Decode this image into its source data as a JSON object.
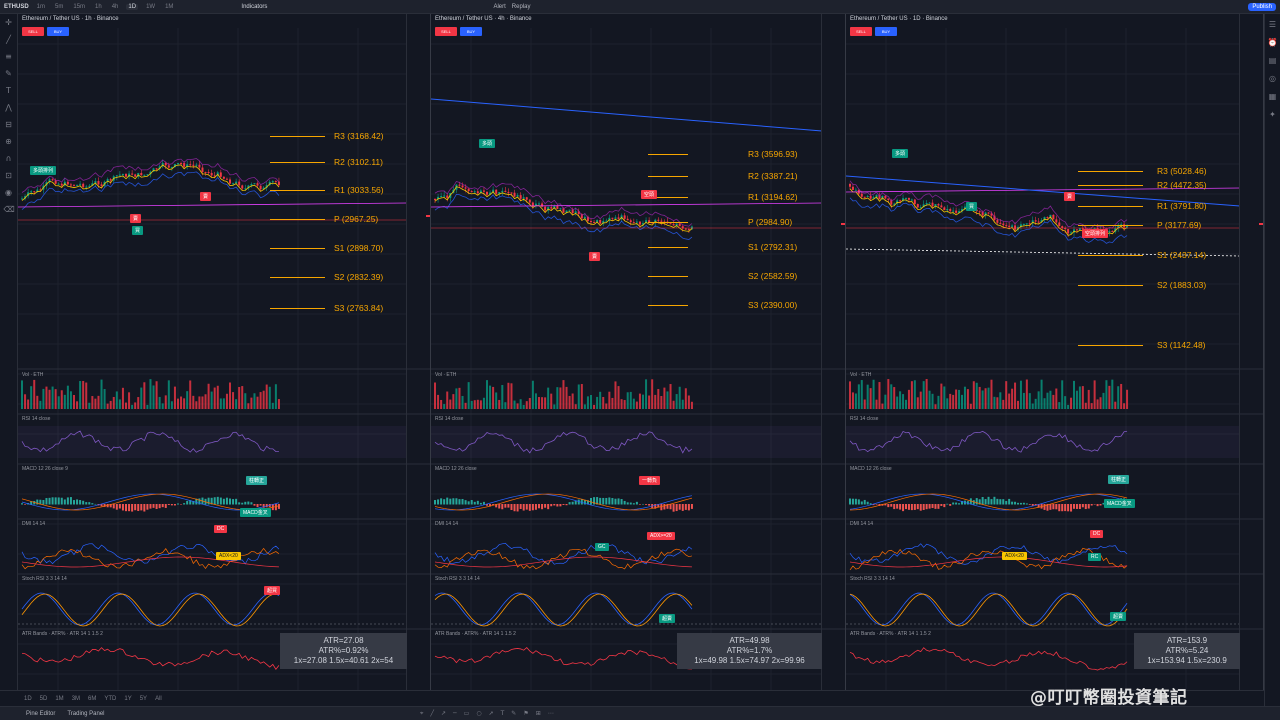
{
  "topbar": {
    "symbol": "ETHUSD",
    "timeframes": [
      "1m",
      "5m",
      "15m",
      "1h",
      "4h",
      "1D",
      "1W",
      "1M"
    ],
    "active_timeframe": "1D",
    "indicators_label": "Indicators",
    "alert_label": "Alert",
    "replay_label": "Replay",
    "publish_label": "Publish"
  },
  "panels": [
    {
      "title": "Ethereum / Tether US · 1h · Binance",
      "sell_label": "SELL",
      "buy_label": "BUY",
      "pivots": [
        {
          "label": "R3 (3168.42)",
          "level": "R3"
        },
        {
          "label": "R2 (3102.11)",
          "level": "R2"
        },
        {
          "label": "R1 (3033.56)",
          "level": "R1"
        },
        {
          "label": "P (2967.25)",
          "level": "P"
        },
        {
          "label": "S1 (2898.70)",
          "level": "S1"
        },
        {
          "label": "S2 (2832.39)",
          "level": "S2"
        },
        {
          "label": "S3 (2763.84)",
          "level": "S3"
        }
      ],
      "tags": [
        {
          "text": "多頭排列",
          "kind": "green"
        },
        {
          "text": "賣",
          "kind": "red"
        },
        {
          "text": "買",
          "kind": "green"
        },
        {
          "text": "賣",
          "kind": "red"
        }
      ],
      "macd_tags": [
        {
          "text": "柱轉正",
          "kind": "teal"
        },
        {
          "text": "MACD金叉",
          "kind": "green"
        }
      ],
      "dmi_tags": [
        {
          "text": "DC",
          "kind": "red"
        },
        {
          "text": "ADX<20",
          "kind": "yellow"
        }
      ],
      "stoch_tags": [
        {
          "text": "超買",
          "kind": "red"
        }
      ],
      "atr": {
        "line1": "ATR=27.08",
        "line2": "ATR%=0.92%",
        "line3": "1x=27.08   1.5x=40.61   2x=54"
      },
      "ind_labels": {
        "vol": "Vol · ETH",
        "rsi": "RSI 14 close",
        "macd": "MACD 12 26 close 9",
        "dmi": "DMI 14 14",
        "stoch": "Stoch RSI 3 3 14 14",
        "atr": "ATR Bands · ATR% · ATR 14 1 1.5 2"
      }
    },
    {
      "title": "Ethereum / Tether US · 4h · Binance",
      "sell_label": "SELL",
      "buy_label": "BUY",
      "pivots": [
        {
          "label": "R3 (3596.93)",
          "level": "R3"
        },
        {
          "label": "R2 (3387.21)",
          "level": "R2"
        },
        {
          "label": "R1 (3194.62)",
          "level": "R1"
        },
        {
          "label": "P (2984.90)",
          "level": "P"
        },
        {
          "label": "S1 (2792.31)",
          "level": "S1"
        },
        {
          "label": "S2 (2582.59)",
          "level": "S2"
        },
        {
          "label": "S3 (2390.00)",
          "level": "S3"
        }
      ],
      "tags": [
        {
          "text": "多頭",
          "kind": "green"
        },
        {
          "text": "賣",
          "kind": "red"
        },
        {
          "text": "空頭",
          "kind": "red"
        }
      ],
      "macd_tags": [
        {
          "text": "一轉負",
          "kind": "red"
        }
      ],
      "dmi_tags": [
        {
          "text": "GC",
          "kind": "green"
        },
        {
          "text": "ADX>=20",
          "kind": "red"
        }
      ],
      "stoch_tags": [
        {
          "text": "超賣",
          "kind": "green"
        }
      ],
      "atr": {
        "line1": "ATR=49.98",
        "line2": "ATR%=1.7%",
        "line3": "1x=49.98   1.5x=74.97   2x=99.96"
      },
      "ind_labels": {
        "vol": "Vol · ETH",
        "rsi": "RSI 14 close",
        "macd": "MACD 12 26 close",
        "dmi": "DMI 14 14",
        "stoch": "Stoch RSI 3 3 14 14",
        "atr": "ATR Bands · ATR% · ATR 14 1 1.5 2"
      }
    },
    {
      "title": "Ethereum / Tether US · 1D · Binance",
      "sell_label": "SELL",
      "buy_label": "BUY",
      "pivots": [
        {
          "label": "R3 (5028.46)",
          "level": "R3"
        },
        {
          "label": "R2 (4472.35)",
          "level": "R2"
        },
        {
          "label": "R1 (3791.80)",
          "level": "R1"
        },
        {
          "label": "P (3177.69)",
          "level": "P"
        },
        {
          "label": "S1 (2437.14)",
          "level": "S1"
        },
        {
          "label": "S2 (1883.03)",
          "level": "S2"
        },
        {
          "label": "S3 (1142.48)",
          "level": "S3"
        }
      ],
      "tags": [
        {
          "text": "多頭",
          "kind": "green"
        },
        {
          "text": "買",
          "kind": "green"
        },
        {
          "text": "賣",
          "kind": "red"
        },
        {
          "text": "空頭排列",
          "kind": "red"
        }
      ],
      "macd_tags": [
        {
          "text": "柱轉正",
          "kind": "teal"
        },
        {
          "text": "MACD金叉",
          "kind": "green"
        }
      ],
      "dmi_tags": [
        {
          "text": "DC",
          "kind": "red"
        },
        {
          "text": "ADX<20",
          "kind": "yellow"
        },
        {
          "text": "RC",
          "kind": "green"
        }
      ],
      "stoch_tags": [
        {
          "text": "超賣",
          "kind": "green"
        }
      ],
      "atr": {
        "line1": "ATR=153.9",
        "line2": "ATR%=5.24",
        "line3": "1x=153.94   1.5x=230.9"
      },
      "ind_labels": {
        "vol": "Vol · ETH",
        "rsi": "RSI 14 close",
        "macd": "MACD 12 26 close",
        "dmi": "DMI 14 14",
        "stoch": "Stoch RSI 3 3 14 14",
        "atr": "ATR Bands · ATR% · ATR 14 1 1.5 2"
      }
    }
  ],
  "bottombar": {
    "ranges": [
      "1D",
      "5D",
      "1M",
      "3M",
      "6M",
      "YTD",
      "1Y",
      "5Y",
      "All"
    ]
  },
  "footer": {
    "tab1": "Pine Editor",
    "tab2": "Trading Panel"
  },
  "watermark": "@叮叮幣圈投資筆記",
  "colors": {
    "up": "#089981",
    "down": "#f23645",
    "pivot": "#f7a600",
    "bg": "#131722"
  }
}
